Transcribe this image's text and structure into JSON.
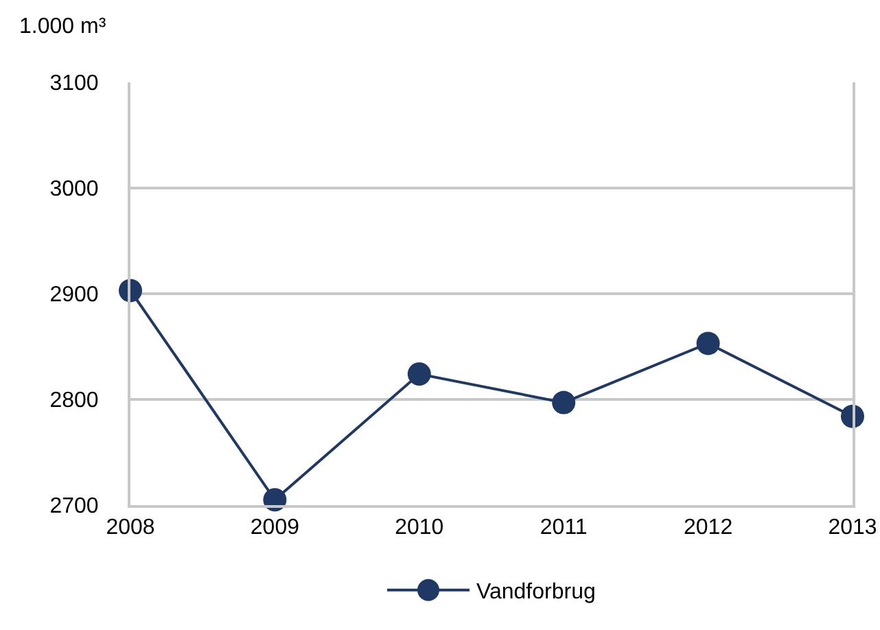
{
  "chart_data": {
    "type": "line",
    "ylabel": "1.000 m³",
    "categories": [
      "2008",
      "2009",
      "2010",
      "2011",
      "2012",
      "2013"
    ],
    "series": [
      {
        "name": "Vandforbrug",
        "color": "#1f3864",
        "values": [
          2903,
          2705,
          2824,
          2797,
          2853,
          2784
        ]
      }
    ],
    "ylim": [
      2700,
      3100
    ],
    "yticks": [
      2700,
      2800,
      2900,
      3000,
      3100
    ],
    "grid": "y",
    "legend": "bottom",
    "marker": "circle",
    "line_style": "solid"
  }
}
